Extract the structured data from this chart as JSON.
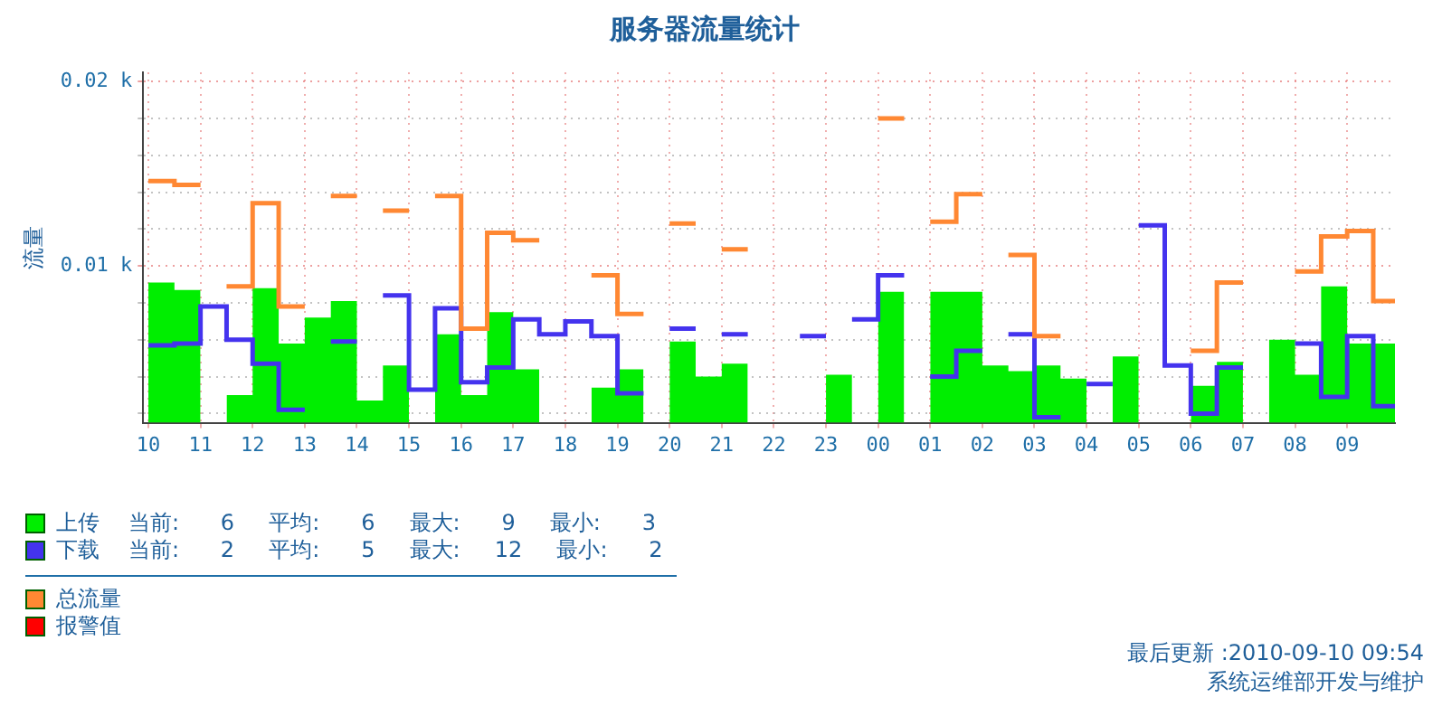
{
  "chart_data": {
    "type": "step",
    "title": "服务器流量统计",
    "ylabel": "流量",
    "x": [
      "2010-09-09T10:00",
      "2010-09-09T10:30",
      "2010-09-09T11:00",
      "2010-09-09T11:30",
      "2010-09-09T12:00",
      "2010-09-09T12:30",
      "2010-09-09T13:00",
      "2010-09-09T13:30",
      "2010-09-09T14:00",
      "2010-09-09T14:30",
      "2010-09-09T15:00",
      "2010-09-09T15:30",
      "2010-09-09T16:00",
      "2010-09-09T16:30",
      "2010-09-09T17:00",
      "2010-09-09T17:30",
      "2010-09-09T18:00",
      "2010-09-09T18:30",
      "2010-09-09T19:00",
      "2010-09-09T19:30",
      "2010-09-09T20:00",
      "2010-09-09T20:30",
      "2010-09-09T21:00",
      "2010-09-09T21:30",
      "2010-09-09T22:00",
      "2010-09-09T22:30",
      "2010-09-09T23:00",
      "2010-09-09T23:30",
      "2010-09-10T00:00",
      "2010-09-10T00:30",
      "2010-09-10T01:00",
      "2010-09-10T01:30",
      "2010-09-10T02:00",
      "2010-09-10T02:30",
      "2010-09-10T03:00",
      "2010-09-10T03:30",
      "2010-09-10T04:00",
      "2010-09-10T04:30",
      "2010-09-10T05:00",
      "2010-09-10T05:30",
      "2010-09-10T06:00",
      "2010-09-10T06:30",
      "2010-09-10T07:00",
      "2010-09-10T07:30",
      "2010-09-10T08:00",
      "2010-09-10T08:30",
      "2010-09-10T09:00",
      "2010-09-10T09:30",
      "2010-09-10T09:55"
    ],
    "series": [
      {
        "name": "上传",
        "type": "area",
        "color": "#00ee00",
        "values": [
          9.1,
          8.7,
          null,
          3.0,
          8.8,
          5.8,
          7.2,
          8.1,
          2.7,
          4.6,
          null,
          6.3,
          3.0,
          7.5,
          4.4,
          null,
          null,
          3.4,
          4.4,
          null,
          5.9,
          4.0,
          4.7,
          null,
          null,
          null,
          4.1,
          null,
          8.6,
          null,
          8.6,
          8.6,
          4.6,
          4.3,
          4.6,
          3.9,
          null,
          5.1,
          null,
          null,
          3.5,
          4.8,
          null,
          6.0,
          4.1,
          8.9,
          5.8,
          5.8,
          5.8
        ]
      },
      {
        "name": "下载",
        "color": "#4433ee",
        "values": [
          5.7,
          5.8,
          7.8,
          6.0,
          4.7,
          2.2,
          null,
          5.9,
          null,
          8.4,
          3.3,
          7.7,
          3.7,
          4.5,
          7.1,
          6.3,
          7.0,
          6.2,
          3.1,
          null,
          6.6,
          null,
          6.3,
          null,
          null,
          6.2,
          null,
          7.1,
          9.5,
          null,
          4.0,
          5.4,
          null,
          6.3,
          1.8,
          null,
          3.6,
          null,
          12.2,
          4.6,
          2.0,
          4.5,
          null,
          null,
          5.8,
          2.9,
          6.2,
          2.4,
          2.4
        ]
      },
      {
        "name": "总流量",
        "color": "#ff8833",
        "values": [
          14.6,
          14.4,
          null,
          8.9,
          13.4,
          7.8,
          null,
          13.8,
          null,
          13.0,
          null,
          13.8,
          6.6,
          11.8,
          11.4,
          null,
          null,
          9.5,
          7.4,
          null,
          12.3,
          null,
          10.9,
          null,
          null,
          null,
          null,
          null,
          18.0,
          null,
          12.4,
          13.9,
          null,
          10.6,
          6.2,
          null,
          null,
          null,
          null,
          null,
          5.4,
          9.1,
          null,
          null,
          9.7,
          11.6,
          11.9,
          8.1,
          8.1
        ]
      },
      {
        "name": "报警值",
        "color": "#ff0000",
        "values": [
          null,
          null,
          null,
          null,
          null,
          null,
          null,
          null,
          null,
          null,
          null,
          null,
          null,
          null,
          null,
          null,
          null,
          null,
          null,
          null,
          null,
          null,
          null,
          null,
          null,
          null,
          null,
          null,
          null,
          null,
          null,
          null,
          null,
          null,
          null,
          null,
          null,
          null,
          null,
          null,
          null,
          null,
          null,
          null,
          null,
          null,
          null,
          null,
          null
        ]
      }
    ],
    "xlim": [
      "2010-09-09T09:54",
      "2010-09-10T09:55"
    ],
    "xticks": [
      {
        "value": "2010-09-09T10:00",
        "label": "10"
      },
      {
        "value": "2010-09-09T11:00",
        "label": "11"
      },
      {
        "value": "2010-09-09T12:00",
        "label": "12"
      },
      {
        "value": "2010-09-09T13:00",
        "label": "13"
      },
      {
        "value": "2010-09-09T14:00",
        "label": "14"
      },
      {
        "value": "2010-09-09T15:00",
        "label": "15"
      },
      {
        "value": "2010-09-09T16:00",
        "label": "16"
      },
      {
        "value": "2010-09-09T17:00",
        "label": "17"
      },
      {
        "value": "2010-09-09T18:00",
        "label": "18"
      },
      {
        "value": "2010-09-09T19:00",
        "label": "19"
      },
      {
        "value": "2010-09-09T20:00",
        "label": "20"
      },
      {
        "value": "2010-09-09T21:00",
        "label": "21"
      },
      {
        "value": "2010-09-09T22:00",
        "label": "22"
      },
      {
        "value": "2010-09-09T23:00",
        "label": "23"
      },
      {
        "value": "2010-09-10T00:00",
        "label": "00"
      },
      {
        "value": "2010-09-10T01:00",
        "label": "01"
      },
      {
        "value": "2010-09-10T02:00",
        "label": "02"
      },
      {
        "value": "2010-09-10T03:00",
        "label": "03"
      },
      {
        "value": "2010-09-10T04:00",
        "label": "04"
      },
      {
        "value": "2010-09-10T05:00",
        "label": "05"
      },
      {
        "value": "2010-09-10T06:00",
        "label": "06"
      },
      {
        "value": "2010-09-10T07:00",
        "label": "07"
      },
      {
        "value": "2010-09-10T08:00",
        "label": "08"
      },
      {
        "value": "2010-09-10T09:00",
        "label": "09"
      }
    ],
    "ylim": [
      1.5,
      20.5
    ],
    "yticks": [
      {
        "value": 2,
        "label": null
      },
      {
        "value": 4,
        "label": null
      },
      {
        "value": 6,
        "label": null
      },
      {
        "value": 8,
        "label": null
      },
      {
        "value": 10,
        "label": "0.01 k"
      },
      {
        "value": 12,
        "label": null
      },
      {
        "value": 14,
        "label": null
      },
      {
        "value": 16,
        "label": null
      },
      {
        "value": 18,
        "label": null
      },
      {
        "value": 20,
        "label": "0.02 k"
      }
    ],
    "grid": true,
    "legend": "bottom",
    "annotations": [
      "当前:      6     平均:      6     最大:      9     最小:      3",
      "当前:      2     平均:      5     最大:     12     最小:      2",
      "最后更新 :2010-09-10 09:54",
      "系统运维部开发与维护"
    ]
  }
}
